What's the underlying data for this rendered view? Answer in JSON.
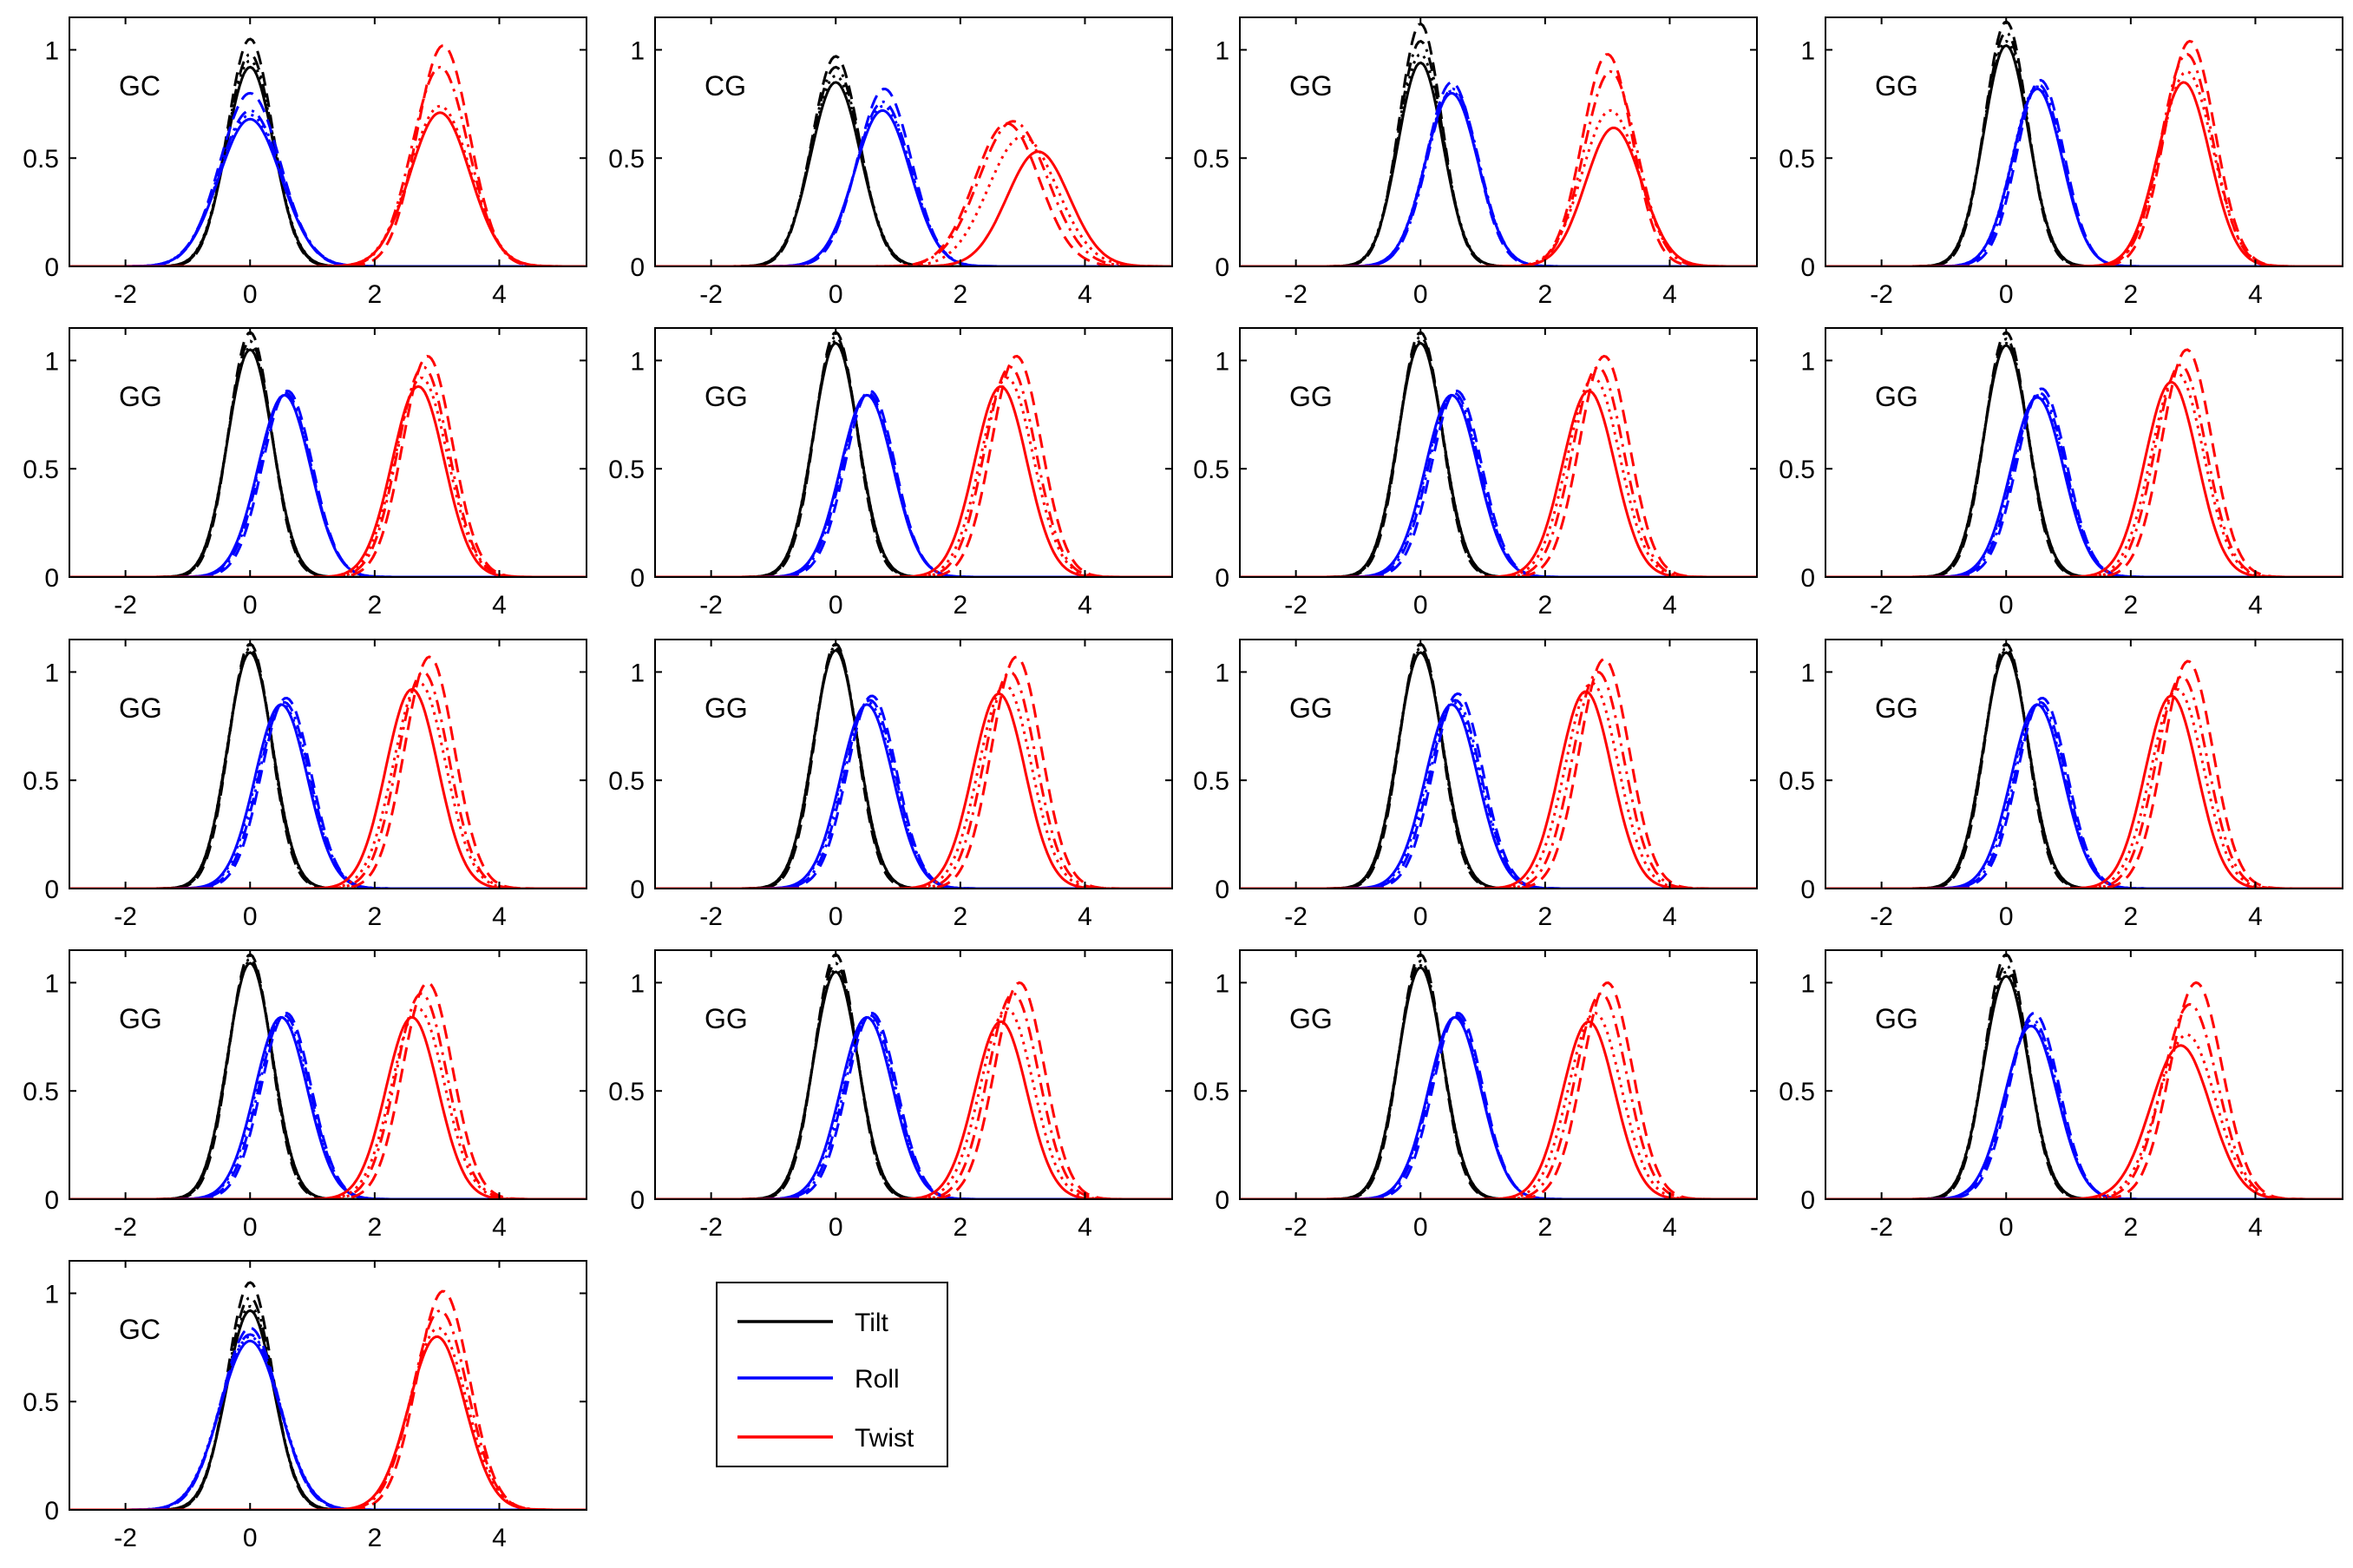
{
  "colors": {
    "tilt": "#000000",
    "roll": "#0000ff",
    "twist": "#ff0000"
  },
  "legend": [
    {
      "name": "Tilt",
      "color": "#000000"
    },
    {
      "name": "Roll",
      "color": "#0000ff"
    },
    {
      "name": "Twist",
      "color": "#ff0000"
    }
  ],
  "chart_data": {
    "type": "line",
    "layout": {
      "rows": 5,
      "cols": 4
    },
    "xlim": [
      -2.9,
      5.4
    ],
    "ylim": [
      0,
      1.15
    ],
    "xticks": [
      -2,
      0,
      2,
      4
    ],
    "xtick_labels": [
      "-2",
      "0",
      "2",
      "4"
    ],
    "yticks": [
      0,
      0.5,
      1
    ],
    "ytick_labels": [
      "0",
      "0.5",
      "1"
    ],
    "line_styles": [
      "solid",
      "dashed",
      "dashdot",
      "dotted"
    ],
    "curve_model": "gaussian peaks: mean mu, standard deviation sigma, peak height amp",
    "panels": [
      {
        "label": "GC",
        "tilt": [
          [
            0.0,
            0.38,
            0.92
          ],
          [
            0.0,
            0.36,
            1.05
          ],
          [
            0.0,
            0.37,
            0.98
          ],
          [
            0.0,
            0.38,
            0.95
          ]
        ],
        "roll": [
          [
            0.0,
            0.5,
            0.68
          ],
          [
            0.0,
            0.48,
            0.8
          ],
          [
            0.0,
            0.5,
            0.72
          ],
          [
            0.0,
            0.5,
            0.7
          ]
        ],
        "twist": [
          [
            3.05,
            0.48,
            0.71
          ],
          [
            3.1,
            0.42,
            1.02
          ],
          [
            3.05,
            0.45,
            0.92
          ],
          [
            3.05,
            0.48,
            0.74
          ]
        ]
      },
      {
        "label": "CG",
        "tilt": [
          [
            0.0,
            0.4,
            0.85
          ],
          [
            0.0,
            0.38,
            0.97
          ],
          [
            0.0,
            0.39,
            0.92
          ],
          [
            0.0,
            0.4,
            0.88
          ]
        ],
        "roll": [
          [
            0.75,
            0.45,
            0.72
          ],
          [
            0.78,
            0.43,
            0.82
          ],
          [
            0.76,
            0.44,
            0.76
          ],
          [
            0.76,
            0.45,
            0.74
          ]
        ],
        "twist": [
          [
            3.25,
            0.5,
            0.53
          ],
          [
            2.75,
            0.52,
            0.66
          ],
          [
            2.85,
            0.55,
            0.67
          ],
          [
            3.0,
            0.55,
            0.6
          ]
        ]
      },
      {
        "label": "GG",
        "tilt": [
          [
            0.0,
            0.36,
            0.94
          ],
          [
            0.0,
            0.34,
            1.12
          ],
          [
            0.0,
            0.35,
            1.04
          ],
          [
            0.0,
            0.36,
            0.98
          ]
        ],
        "roll": [
          [
            0.5,
            0.42,
            0.8
          ],
          [
            0.5,
            0.4,
            0.85
          ],
          [
            0.52,
            0.41,
            0.82
          ],
          [
            0.5,
            0.42,
            0.81
          ]
        ],
        "twist": [
          [
            3.1,
            0.45,
            0.64
          ],
          [
            3.0,
            0.4,
            0.98
          ],
          [
            3.05,
            0.42,
            0.9
          ],
          [
            3.05,
            0.45,
            0.72
          ]
        ]
      },
      {
        "label": "GG",
        "tilt": [
          [
            0.0,
            0.36,
            1.02
          ],
          [
            0.0,
            0.34,
            1.13
          ],
          [
            0.0,
            0.35,
            1.08
          ],
          [
            0.0,
            0.36,
            1.04
          ]
        ],
        "roll": [
          [
            0.5,
            0.4,
            0.82
          ],
          [
            0.55,
            0.38,
            0.86
          ],
          [
            0.52,
            0.39,
            0.84
          ],
          [
            0.5,
            0.4,
            0.83
          ]
        ],
        "twist": [
          [
            2.85,
            0.42,
            0.85
          ],
          [
            2.95,
            0.4,
            1.04
          ],
          [
            2.9,
            0.41,
            0.98
          ],
          [
            2.9,
            0.42,
            0.9
          ]
        ]
      },
      {
        "label": "GG",
        "tilt": [
          [
            0.0,
            0.36,
            1.05
          ],
          [
            0.0,
            0.34,
            1.13
          ],
          [
            0.0,
            0.35,
            1.09
          ],
          [
            0.0,
            0.36,
            1.06
          ]
        ],
        "roll": [
          [
            0.55,
            0.42,
            0.84
          ],
          [
            0.6,
            0.4,
            0.86
          ],
          [
            0.57,
            0.41,
            0.85
          ],
          [
            0.56,
            0.42,
            0.84
          ]
        ],
        "twist": [
          [
            2.7,
            0.42,
            0.88
          ],
          [
            2.85,
            0.4,
            1.02
          ],
          [
            2.78,
            0.41,
            0.97
          ],
          [
            2.75,
            0.42,
            0.92
          ]
        ]
      },
      {
        "label": "GG",
        "tilt": [
          [
            0.0,
            0.36,
            1.08
          ],
          [
            0.0,
            0.34,
            1.13
          ],
          [
            0.0,
            0.35,
            1.11
          ],
          [
            0.0,
            0.36,
            1.09
          ]
        ],
        "roll": [
          [
            0.5,
            0.42,
            0.84
          ],
          [
            0.55,
            0.4,
            0.86
          ],
          [
            0.52,
            0.41,
            0.85
          ],
          [
            0.51,
            0.42,
            0.84
          ]
        ],
        "twist": [
          [
            2.65,
            0.42,
            0.88
          ],
          [
            2.9,
            0.4,
            1.02
          ],
          [
            2.8,
            0.41,
            0.97
          ],
          [
            2.75,
            0.42,
            0.92
          ]
        ]
      },
      {
        "label": "GG",
        "tilt": [
          [
            0.0,
            0.36,
            1.08
          ],
          [
            0.0,
            0.34,
            1.13
          ],
          [
            0.0,
            0.35,
            1.11
          ],
          [
            0.0,
            0.36,
            1.09
          ]
        ],
        "roll": [
          [
            0.5,
            0.42,
            0.84
          ],
          [
            0.58,
            0.4,
            0.86
          ],
          [
            0.54,
            0.41,
            0.85
          ],
          [
            0.52,
            0.42,
            0.84
          ]
        ],
        "twist": [
          [
            2.7,
            0.42,
            0.86
          ],
          [
            2.95,
            0.4,
            1.02
          ],
          [
            2.85,
            0.41,
            0.97
          ],
          [
            2.78,
            0.42,
            0.92
          ]
        ]
      },
      {
        "label": "GG",
        "tilt": [
          [
            0.0,
            0.36,
            1.07
          ],
          [
            0.0,
            0.34,
            1.13
          ],
          [
            0.0,
            0.35,
            1.1
          ],
          [
            0.0,
            0.36,
            1.08
          ]
        ],
        "roll": [
          [
            0.5,
            0.42,
            0.83
          ],
          [
            0.57,
            0.4,
            0.87
          ],
          [
            0.54,
            0.41,
            0.85
          ],
          [
            0.52,
            0.42,
            0.84
          ]
        ],
        "twist": [
          [
            2.65,
            0.42,
            0.9
          ],
          [
            2.9,
            0.4,
            1.05
          ],
          [
            2.8,
            0.41,
            0.98
          ],
          [
            2.75,
            0.42,
            0.94
          ]
        ]
      },
      {
        "label": "GG",
        "tilt": [
          [
            0.0,
            0.36,
            1.09
          ],
          [
            0.0,
            0.34,
            1.13
          ],
          [
            0.0,
            0.35,
            1.11
          ],
          [
            0.0,
            0.36,
            1.1
          ]
        ],
        "roll": [
          [
            0.5,
            0.42,
            0.85
          ],
          [
            0.58,
            0.4,
            0.88
          ],
          [
            0.55,
            0.41,
            0.86
          ],
          [
            0.52,
            0.42,
            0.85
          ]
        ],
        "twist": [
          [
            2.6,
            0.42,
            0.92
          ],
          [
            2.88,
            0.4,
            1.07
          ],
          [
            2.78,
            0.41,
            1.0
          ],
          [
            2.72,
            0.42,
            0.95
          ]
        ]
      },
      {
        "label": "GG",
        "tilt": [
          [
            0.0,
            0.36,
            1.1
          ],
          [
            0.0,
            0.34,
            1.13
          ],
          [
            0.0,
            0.35,
            1.12
          ],
          [
            0.0,
            0.36,
            1.11
          ]
        ],
        "roll": [
          [
            0.5,
            0.42,
            0.85
          ],
          [
            0.58,
            0.4,
            0.89
          ],
          [
            0.55,
            0.41,
            0.87
          ],
          [
            0.52,
            0.42,
            0.86
          ]
        ],
        "twist": [
          [
            2.62,
            0.42,
            0.9
          ],
          [
            2.9,
            0.4,
            1.07
          ],
          [
            2.8,
            0.41,
            1.0
          ],
          [
            2.72,
            0.42,
            0.94
          ]
        ]
      },
      {
        "label": "GG",
        "tilt": [
          [
            0.0,
            0.36,
            1.09
          ],
          [
            0.0,
            0.34,
            1.13
          ],
          [
            0.0,
            0.35,
            1.11
          ],
          [
            0.0,
            0.36,
            1.1
          ]
        ],
        "roll": [
          [
            0.5,
            0.42,
            0.85
          ],
          [
            0.6,
            0.4,
            0.9
          ],
          [
            0.56,
            0.41,
            0.87
          ],
          [
            0.53,
            0.42,
            0.86
          ]
        ],
        "twist": [
          [
            2.65,
            0.42,
            0.91
          ],
          [
            2.95,
            0.4,
            1.06
          ],
          [
            2.85,
            0.41,
            1.0
          ],
          [
            2.75,
            0.42,
            0.95
          ]
        ]
      },
      {
        "label": "GG",
        "tilt": [
          [
            0.0,
            0.36,
            1.09
          ],
          [
            0.0,
            0.34,
            1.13
          ],
          [
            0.0,
            0.35,
            1.11
          ],
          [
            0.0,
            0.36,
            1.1
          ]
        ],
        "roll": [
          [
            0.5,
            0.42,
            0.85
          ],
          [
            0.58,
            0.4,
            0.88
          ],
          [
            0.55,
            0.41,
            0.86
          ],
          [
            0.52,
            0.42,
            0.85
          ]
        ],
        "twist": [
          [
            2.65,
            0.42,
            0.89
          ],
          [
            2.92,
            0.4,
            1.05
          ],
          [
            2.82,
            0.41,
            0.98
          ],
          [
            2.75,
            0.42,
            0.92
          ]
        ]
      },
      {
        "label": "GG",
        "tilt": [
          [
            0.0,
            0.36,
            1.09
          ],
          [
            0.0,
            0.34,
            1.13
          ],
          [
            0.0,
            0.35,
            1.11
          ],
          [
            0.0,
            0.36,
            1.1
          ]
        ],
        "roll": [
          [
            0.5,
            0.42,
            0.84
          ],
          [
            0.58,
            0.4,
            0.86
          ],
          [
            0.55,
            0.41,
            0.85
          ],
          [
            0.52,
            0.42,
            0.84
          ]
        ],
        "twist": [
          [
            2.6,
            0.42,
            0.84
          ],
          [
            2.85,
            0.4,
            1.0
          ],
          [
            2.75,
            0.41,
            0.95
          ],
          [
            2.7,
            0.42,
            0.88
          ]
        ]
      },
      {
        "label": "GG",
        "tilt": [
          [
            0.0,
            0.36,
            1.05
          ],
          [
            0.0,
            0.34,
            1.13
          ],
          [
            0.0,
            0.35,
            1.09
          ],
          [
            0.0,
            0.36,
            1.06
          ]
        ],
        "roll": [
          [
            0.5,
            0.42,
            0.84
          ],
          [
            0.58,
            0.4,
            0.86
          ],
          [
            0.55,
            0.41,
            0.85
          ],
          [
            0.52,
            0.42,
            0.84
          ]
        ],
        "twist": [
          [
            2.65,
            0.42,
            0.82
          ],
          [
            2.95,
            0.4,
            1.0
          ],
          [
            2.85,
            0.41,
            0.95
          ],
          [
            2.75,
            0.42,
            0.88
          ]
        ]
      },
      {
        "label": "GG",
        "tilt": [
          [
            0.0,
            0.36,
            1.07
          ],
          [
            0.0,
            0.34,
            1.13
          ],
          [
            0.0,
            0.35,
            1.1
          ],
          [
            0.0,
            0.36,
            1.08
          ]
        ],
        "roll": [
          [
            0.55,
            0.42,
            0.84
          ],
          [
            0.6,
            0.4,
            0.86
          ],
          [
            0.57,
            0.41,
            0.85
          ],
          [
            0.56,
            0.42,
            0.84
          ]
        ],
        "twist": [
          [
            2.7,
            0.42,
            0.82
          ],
          [
            3.0,
            0.4,
            1.0
          ],
          [
            2.9,
            0.41,
            0.95
          ],
          [
            2.8,
            0.42,
            0.86
          ]
        ]
      },
      {
        "label": "GG",
        "tilt": [
          [
            0.0,
            0.36,
            1.03
          ],
          [
            0.0,
            0.34,
            1.13
          ],
          [
            0.0,
            0.35,
            1.08
          ],
          [
            0.0,
            0.36,
            1.05
          ]
        ],
        "roll": [
          [
            0.4,
            0.42,
            0.8
          ],
          [
            0.45,
            0.4,
            0.86
          ],
          [
            0.42,
            0.41,
            0.83
          ],
          [
            0.41,
            0.42,
            0.81
          ]
        ],
        "twist": [
          [
            2.8,
            0.48,
            0.71
          ],
          [
            3.05,
            0.42,
            1.0
          ],
          [
            2.95,
            0.44,
            0.9
          ],
          [
            2.9,
            0.46,
            0.76
          ]
        ]
      },
      {
        "label": "GC",
        "tilt": [
          [
            0.0,
            0.38,
            0.92
          ],
          [
            0.0,
            0.36,
            1.05
          ],
          [
            0.0,
            0.37,
            0.98
          ],
          [
            0.0,
            0.38,
            0.94
          ]
        ],
        "roll": [
          [
            0.0,
            0.48,
            0.78
          ],
          [
            0.0,
            0.46,
            0.84
          ],
          [
            0.0,
            0.47,
            0.81
          ],
          [
            0.0,
            0.48,
            0.8
          ]
        ],
        "twist": [
          [
            3.0,
            0.45,
            0.8
          ],
          [
            3.1,
            0.42,
            1.01
          ],
          [
            3.05,
            0.44,
            0.92
          ],
          [
            3.02,
            0.45,
            0.84
          ]
        ]
      }
    ]
  }
}
